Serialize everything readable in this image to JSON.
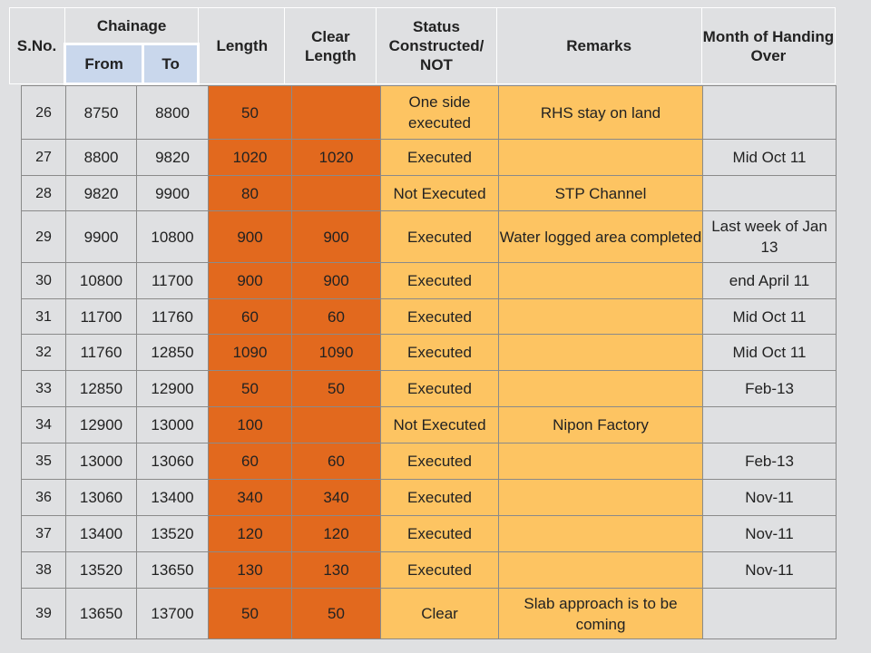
{
  "header": {
    "sno": "S.No.",
    "chainage": "Chainage",
    "from": "From",
    "to": "To",
    "length": "Length",
    "clear_length": "Clear Length",
    "status": "Status Constructed/ NOT",
    "remarks": "Remarks",
    "month": "Month of Handing Over"
  },
  "rows": [
    {
      "sno": "26",
      "from": "8750",
      "to": "8800",
      "length": "50",
      "clear": "",
      "status": "One side executed",
      "remarks": "RHS stay on land",
      "month": ""
    },
    {
      "sno": "27",
      "from": "8800",
      "to": "9820",
      "length": "1020",
      "clear": "1020",
      "status": "Executed",
      "remarks": "",
      "month": "Mid Oct 11"
    },
    {
      "sno": "28",
      "from": "9820",
      "to": "9900",
      "length": "80",
      "clear": "",
      "status": "Not Executed",
      "remarks": "STP Channel",
      "month": ""
    },
    {
      "sno": "29",
      "from": "9900",
      "to": "10800",
      "length": "900",
      "clear": "900",
      "status": "Executed",
      "remarks": "Water logged area completed",
      "month": "Last week of Jan 13"
    },
    {
      "sno": "30",
      "from": "10800",
      "to": "11700",
      "length": "900",
      "clear": "900",
      "status": "Executed",
      "remarks": "",
      "month": "end April 11"
    },
    {
      "sno": "31",
      "from": "11700",
      "to": "11760",
      "length": "60",
      "clear": "60",
      "status": "Executed",
      "remarks": "",
      "month": "Mid Oct 11"
    },
    {
      "sno": "32",
      "from": "11760",
      "to": "12850",
      "length": "1090",
      "clear": "1090",
      "status": "Executed",
      "remarks": "",
      "month": "Mid Oct 11"
    },
    {
      "sno": "33",
      "from": "12850",
      "to": "12900",
      "length": "50",
      "clear": "50",
      "status": "Executed",
      "remarks": "",
      "month": "Feb-13"
    },
    {
      "sno": "34",
      "from": "12900",
      "to": "13000",
      "length": "100",
      "clear": "",
      "status": "Not Executed",
      "remarks": "Nipon Factory",
      "month": ""
    },
    {
      "sno": "35",
      "from": "13000",
      "to": "13060",
      "length": "60",
      "clear": "60",
      "status": "Executed",
      "remarks": "",
      "month": "Feb-13"
    },
    {
      "sno": "36",
      "from": "13060",
      "to": "13400",
      "length": "340",
      "clear": "340",
      "status": "Executed",
      "remarks": "",
      "month": "Nov-11"
    },
    {
      "sno": "37",
      "from": "13400",
      "to": "13520",
      "length": "120",
      "clear": "120",
      "status": "Executed",
      "remarks": "",
      "month": "Nov-11"
    },
    {
      "sno": "38",
      "from": "13520",
      "to": "13650",
      "length": "130",
      "clear": "130",
      "status": "Executed",
      "remarks": "",
      "month": "Nov-11"
    },
    {
      "sno": "39",
      "from": "13650",
      "to": "13700",
      "length": "50",
      "clear": "50",
      "status": "Clear",
      "remarks": "Slab approach is to be coming",
      "month": ""
    }
  ],
  "colors": {
    "length_fill": "#e2691e",
    "status_fill": "#fdc462",
    "subheader_fill": "#c9d7ec",
    "background": "#dfe0e2"
  }
}
